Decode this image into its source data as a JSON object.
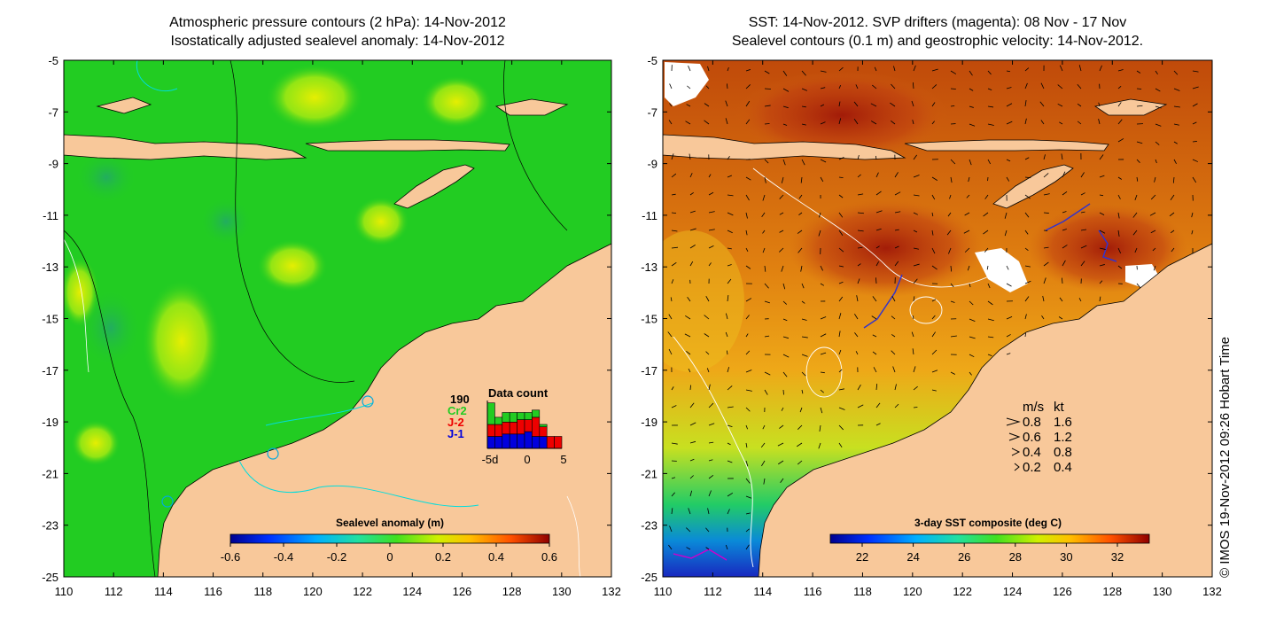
{
  "left_panel": {
    "title_line1": "Atmospheric pressure contours (2 hPa): 14-Nov-2012",
    "title_line2": "Isostatically adjusted sealevel anomaly: 14-Nov-2012",
    "colorbar_title": "Sealevel anomaly (m)",
    "colorbar_ticks": [
      "-0.6",
      "-0.4",
      "-0.2",
      "0",
      "0.2",
      "0.4",
      "0.6"
    ],
    "data_count": {
      "title": "Data count",
      "max_value": "190",
      "legend": [
        {
          "label": "Cr2",
          "color": "#22cc22"
        },
        {
          "label": "J-2",
          "color": "#ee0000"
        },
        {
          "label": "J-1",
          "color": "#0000dd"
        }
      ],
      "axis_ticks": [
        "-5d",
        "0",
        "5"
      ],
      "bars": [
        {
          "j1": 0.25,
          "j2": 0.25,
          "cr2": 0.45
        },
        {
          "j1": 0.25,
          "j2": 0.25,
          "cr2": 0.15
        },
        {
          "j1": 0.3,
          "j2": 0.25,
          "cr2": 0.2
        },
        {
          "j1": 0.3,
          "j2": 0.25,
          "cr2": 0.2
        },
        {
          "j1": 0.3,
          "j2": 0.3,
          "cr2": 0.15
        },
        {
          "j1": 0.35,
          "j2": 0.25,
          "cr2": 0.15
        },
        {
          "j1": 0.25,
          "j2": 0.4,
          "cr2": 0.15
        },
        {
          "j1": 0.25,
          "j2": 0.2,
          "cr2": 0.05
        },
        {
          "j1": 0.0,
          "j2": 0.25,
          "cr2": 0.0
        },
        {
          "j1": 0.0,
          "j2": 0.25,
          "cr2": 0.0
        }
      ]
    }
  },
  "right_panel": {
    "title_line1": "SST: 14-Nov-2012. SVP drifters (magenta): 08 Nov - 17 Nov",
    "title_line2": "Sealevel contours (0.1 m) and geostrophic velocity: 14-Nov-2012.",
    "colorbar_title": "3-day SST composite (deg C)",
    "colorbar_ticks": [
      "22",
      "24",
      "26",
      "28",
      "30",
      "32"
    ],
    "velocity_legend": {
      "header_ms": "m/s",
      "header_kt": "kt",
      "rows": [
        {
          "ms": "0.8",
          "kt": "1.6"
        },
        {
          "ms": "0.6",
          "kt": "1.2"
        },
        {
          "ms": "0.4",
          "kt": "0.8"
        },
        {
          "ms": "0.2",
          "kt": "0.4"
        }
      ]
    }
  },
  "axes": {
    "lat_ticks": [
      "-5",
      "-7",
      "-9",
      "-11",
      "-13",
      "-15",
      "-17",
      "-19",
      "-21",
      "-23",
      "-25"
    ],
    "lon_ticks": [
      "110",
      "112",
      "114",
      "116",
      "118",
      "120",
      "122",
      "124",
      "126",
      "128",
      "130",
      "132"
    ]
  },
  "credit": "© IMOS 19-Nov-2012 09:26 Hobart Time",
  "colors": {
    "land": "#f8c89a",
    "ocean_green": "#22cc22",
    "sst_orange": "#e07a10",
    "drifter": "#cc00cc"
  }
}
